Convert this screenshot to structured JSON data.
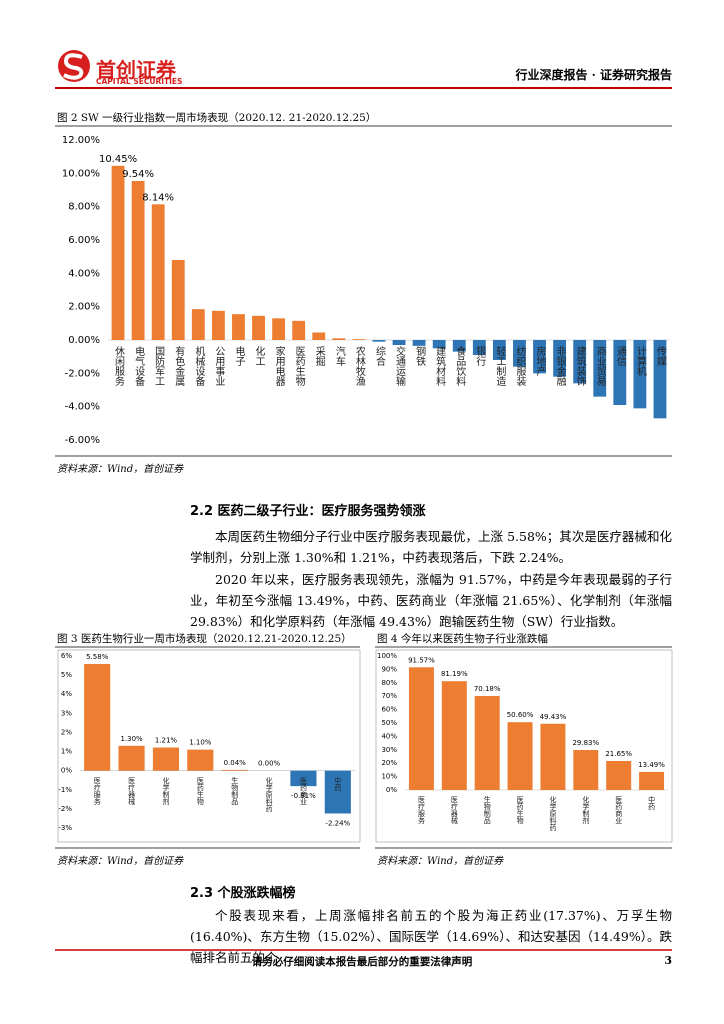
{
  "header": {
    "company": "首创证券",
    "company_en": "CAPITAL SECURITIES",
    "report_type": "行业深度报告 · 证券研究报告"
  },
  "section_2_2": {
    "heading": "2.2  医药二级子行业：医疗服务强势领涨",
    "paragraphs": [
      "本周医药生物细分子行业中医疗服务表现最优，上涨 5.58%；其次是医疗器械和化学制剂，分别上涨 1.30%和 1.21%，中药表现落后，下跌 2.24%。",
      "2020 年以来，医疗服务表现领先，涨幅为 91.57%，中药是今年表现最弱的子行业，年初至今涨幅 13.49%，中药、医药商业（年涨幅 21.65%）、化学制剂（年涨幅 29.83%）和化学原料药（年涨幅 49.43%）跑输医药生物（SW）行业指数。"
    ]
  },
  "section_2_3": {
    "heading": "2.3  个股涨跌幅榜",
    "paragraph": "个股表现来看，上周涨幅排名前五的个股为海正药业(17.37%)、万孚生物(16.40%)、东方生物（15.02%）、国际医学（14.69%）、和达安基因（14.49%）。跌幅排名前五的个"
  },
  "sources": [
    "资料来源：Wind，首创证券",
    "资料来源：Wind，首创证券",
    "资料来源：Wind，首创证券"
  ],
  "footer": {
    "notice": "请务必仔细阅读本报告最后部分的重要法律声明",
    "page": "3"
  },
  "chart_data": [
    {
      "type": "bar",
      "title": "图 2 SW 一级行业指数一周市场表现（2020.12. 21-2020.12.25）",
      "categories": [
        "休闲服务",
        "电气设备",
        "国防军工",
        "有色金属",
        "机械设备",
        "公用事业",
        "电子",
        "化工",
        "家用电器",
        "医药生物",
        "采掘",
        "汽车",
        "农林牧渔",
        "综合",
        "交通运输",
        "钢铁",
        "建筑材料",
        "食品饮料",
        "银行",
        "轻工制造",
        "纺织服装",
        "房地产",
        "非银金融",
        "建筑装饰",
        "商业贸易",
        "通信",
        "计算机",
        "传媒"
      ],
      "values": [
        10.45,
        9.54,
        8.14,
        4.8,
        1.85,
        1.75,
        1.55,
        1.45,
        1.3,
        1.15,
        0.45,
        0.1,
        0.05,
        -0.1,
        -0.3,
        -0.35,
        -0.5,
        -0.7,
        -0.9,
        -1.2,
        -1.6,
        -2.0,
        -2.2,
        -2.6,
        -3.4,
        -3.9,
        -4.1,
        -4.7
      ],
      "value_labels": [
        "10.45%",
        "9.54%",
        "8.14%",
        null,
        null,
        null,
        null,
        null,
        null,
        null,
        null,
        null,
        null,
        null,
        null,
        null,
        null,
        null,
        null,
        null,
        null,
        null,
        null,
        null,
        null,
        null,
        null,
        null
      ],
      "color": "#ed7d31",
      "negative_color": "#2e75b6",
      "ylim": [
        -6,
        12
      ],
      "yticks": [
        {
          "value": -6,
          "label": "-6.00%"
        },
        {
          "value": -4,
          "label": "-4.00%"
        },
        {
          "value": -2,
          "label": "-2.00%"
        },
        {
          "value": 0,
          "label": "0.00%"
        },
        {
          "value": 2,
          "label": "2.00%"
        },
        {
          "value": 4,
          "label": "4.00%"
        },
        {
          "value": 6,
          "label": "6.00%"
        },
        {
          "value": 8,
          "label": "8.00%"
        },
        {
          "value": 10,
          "label": "10.00%"
        },
        {
          "value": 12,
          "label": "12.00%"
        }
      ]
    },
    {
      "type": "bar",
      "title": "图 3 医药生物行业一周市场表现（2020.12.21-2020.12.25）",
      "categories": [
        "医疗服务",
        "医疗器械",
        "化学制剂",
        "医药生物",
        "生物制品",
        "化学原料药",
        "医药商业",
        "中药"
      ],
      "values": [
        5.58,
        1.3,
        1.21,
        1.1,
        0.04,
        0.0,
        -0.81,
        -2.24
      ],
      "value_labels": [
        "5.58%",
        "1.30%",
        "1.21%",
        "1.10%",
        "0.04%",
        "0.00%",
        "-0.81%",
        "-2.24%"
      ],
      "color": "#ed7d31",
      "negative_color": "#2e75b6",
      "ylim": [
        -3,
        6
      ],
      "yticks": [
        {
          "value": -3,
          "label": "-3%"
        },
        {
          "value": -2,
          "label": "-2%"
        },
        {
          "value": -1,
          "label": "-1%"
        },
        {
          "value": 0,
          "label": "0%"
        },
        {
          "value": 1,
          "label": "1%"
        },
        {
          "value": 2,
          "label": "2%"
        },
        {
          "value": 3,
          "label": "3%"
        },
        {
          "value": 4,
          "label": "4%"
        },
        {
          "value": 5,
          "label": "5%"
        },
        {
          "value": 6,
          "label": "6%"
        }
      ]
    },
    {
      "type": "bar",
      "title": "图 4 今年以来医药生物子行业涨跌幅",
      "categories": [
        "医疗服务",
        "医疗器械",
        "生物制品",
        "医药生物",
        "化学原料药",
        "化学制剂",
        "医药商业",
        "中药"
      ],
      "values": [
        91.57,
        81.19,
        70.18,
        50.6,
        49.43,
        29.83,
        21.65,
        13.49
      ],
      "value_labels": [
        "91.57%",
        "81.19%",
        "70.18%",
        "50.60%",
        "49.43%",
        "29.83%",
        "21.65%",
        "13.49%"
      ],
      "color": "#ed7d31",
      "negative_color": "#2e75b6",
      "ylim": [
        0,
        100
      ],
      "yticks": [
        {
          "value": 0,
          "label": "0%"
        },
        {
          "value": 10,
          "label": "10%"
        },
        {
          "value": 20,
          "label": "20%"
        },
        {
          "value": 30,
          "label": "30%"
        },
        {
          "value": 40,
          "label": "40%"
        },
        {
          "value": 50,
          "label": "50%"
        },
        {
          "value": 60,
          "label": "60%"
        },
        {
          "value": 70,
          "label": "70%"
        },
        {
          "value": 80,
          "label": "80%"
        },
        {
          "value": 90,
          "label": "90%"
        },
        {
          "value": 100,
          "label": "100%"
        }
      ]
    }
  ]
}
